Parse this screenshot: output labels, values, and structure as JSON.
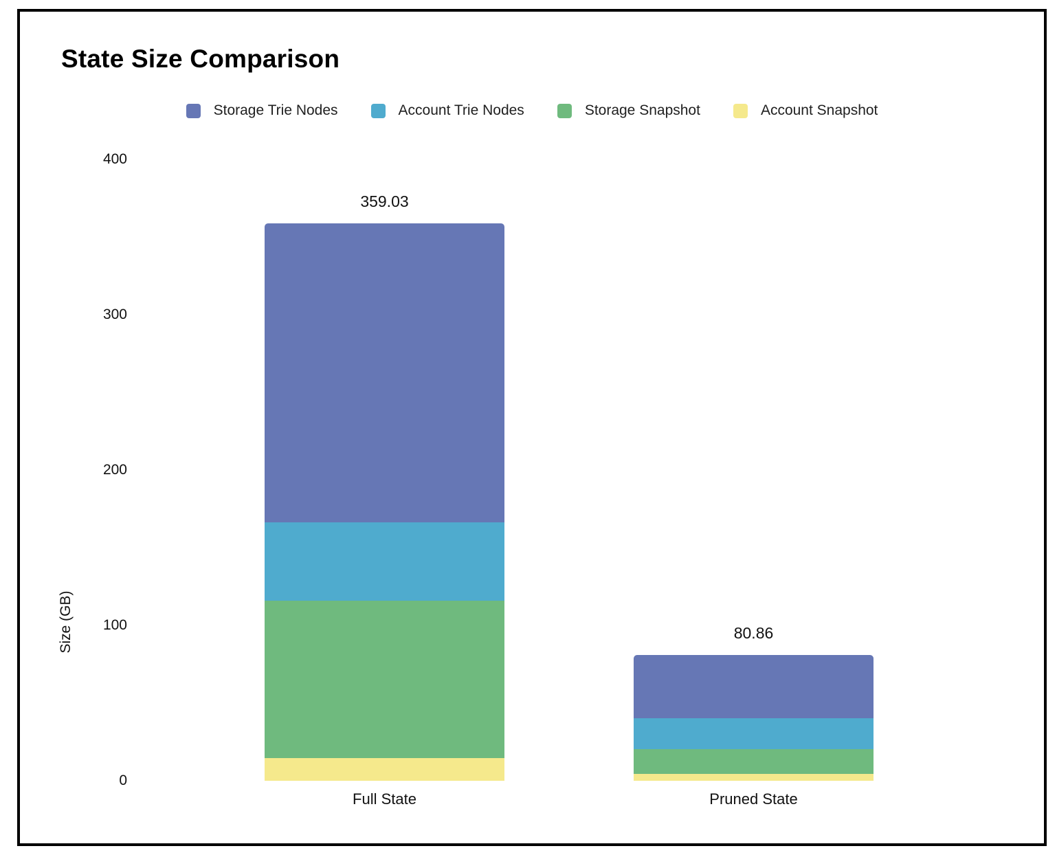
{
  "page": {
    "title": "State Size Comparison"
  },
  "chart_data": {
    "type": "bar",
    "stacked": true,
    "title": "State Size Comparison",
    "xlabel": "",
    "ylabel": "Size (GB)",
    "ylim": [
      0,
      400
    ],
    "yticks": [
      "0",
      "100",
      "200",
      "300",
      "400"
    ],
    "grid": false,
    "legend_position": "top",
    "categories": [
      "Full State",
      "Pruned State"
    ],
    "series": [
      {
        "name": "Storage Trie Nodes",
        "color": "#6677b5",
        "values": [
          192.6,
          40.7
        ]
      },
      {
        "name": "Account Trie Nodes",
        "color": "#4fabce",
        "values": [
          50.6,
          19.8
        ]
      },
      {
        "name": "Storage Snapshot",
        "color": "#6fba7e",
        "values": [
          101.6,
          16.1
        ]
      },
      {
        "name": "Account Snapshot",
        "color": "#f5e98c",
        "values": [
          14.23,
          4.26
        ]
      }
    ],
    "totals": [
      "359.03",
      "80.86"
    ]
  }
}
